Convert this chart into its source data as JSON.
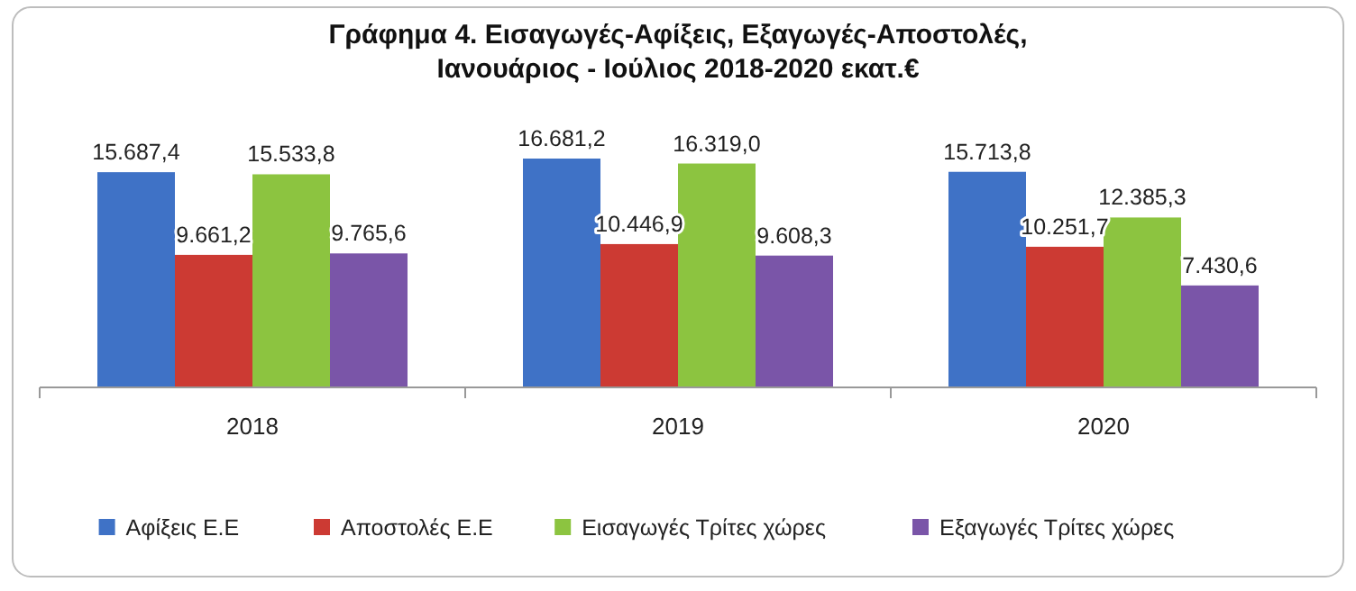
{
  "chart_data": {
    "type": "bar",
    "title": "Γράφημα 4. Εισαγωγές-Αφίξεις, Εξαγωγές-Αποστολές,\nΙανουάριος - Ιούλιος 2018-2020 εκατ.€",
    "categories": [
      "2018",
      "2019",
      "2020"
    ],
    "series": [
      {
        "name": "Αφίξεις Ε.Ε",
        "color": "#3f72c6",
        "values": [
          15687.4,
          16681.2,
          15713.8
        ],
        "value_labels": [
          "15.687,4",
          "16.681,2",
          "15.713,8"
        ]
      },
      {
        "name": "Αποστολές Ε.Ε",
        "color": "#cc3a33",
        "values": [
          9661.2,
          10446.9,
          10251.7
        ],
        "value_labels": [
          "9.661,2",
          "10.446,9",
          "10.251,7"
        ]
      },
      {
        "name": "Εισαγωγές Τρίτες χώρες",
        "color": "#8cc440",
        "values": [
          15533.8,
          16319.0,
          12385.3
        ],
        "value_labels": [
          "15.533,8",
          "16.319,0",
          "12.385,3"
        ]
      },
      {
        "name": "Εξαγωγές Τρίτες χώρες",
        "color": "#7a55a8",
        "values": [
          9765.6,
          9608.3,
          7430.6
        ],
        "value_labels": [
          "9.765,6",
          "9.608,3",
          "7.430,6"
        ]
      }
    ],
    "tick_labels": "x",
    "legend": "bottom"
  }
}
